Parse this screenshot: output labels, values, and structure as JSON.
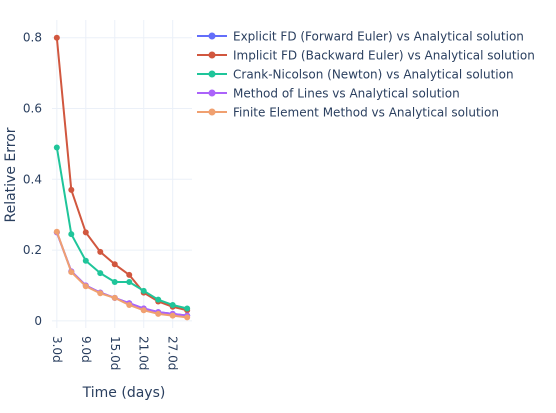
{
  "chart_data": {
    "type": "line",
    "title": "",
    "xlabel": "Time (days)",
    "ylabel": "Relative Error",
    "x": [
      3,
      6,
      9,
      12,
      15,
      18,
      21,
      24,
      27,
      30
    ],
    "xticks": [
      3,
      9,
      15,
      21,
      27
    ],
    "xtick_labels": [
      "3.0d",
      "9.0d",
      "15.0d",
      "21.0d",
      "27.0d"
    ],
    "xlim": [
      2,
      31
    ],
    "yticks": [
      0,
      0.2,
      0.4,
      0.6,
      0.8
    ],
    "ytick_labels": [
      "0",
      "0.2",
      "0.4",
      "0.6",
      "0.8"
    ],
    "ylim": [
      -0.02,
      0.85
    ],
    "grid": true,
    "legend_position": "top-right",
    "series": [
      {
        "name": "Explicit FD (Forward Euler) vs Analytical solution",
        "color": "#636EFA",
        "values": [
          0.25,
          0.14,
          0.1,
          0.08,
          0.065,
          0.05,
          0.035,
          0.025,
          0.02,
          0.015
        ]
      },
      {
        "name": "Implicit FD (Backward Euler) vs Analytical solution",
        "color": "#D1573F",
        "values": [
          0.8,
          0.37,
          0.25,
          0.195,
          0.16,
          0.13,
          0.08,
          0.055,
          0.04,
          0.03
        ]
      },
      {
        "name": "Crank-Nicolson (Newton) vs Analytical solution",
        "color": "#1FC59A",
        "values": [
          0.49,
          0.245,
          0.17,
          0.135,
          0.11,
          0.11,
          0.085,
          0.06,
          0.045,
          0.035
        ]
      },
      {
        "name": "Method of Lines vs Analytical solution",
        "color": "#AB63FA",
        "values": [
          0.25,
          0.14,
          0.1,
          0.08,
          0.065,
          0.05,
          0.035,
          0.025,
          0.02,
          0.015
        ]
      },
      {
        "name": "Finite Element Method vs Analytical solution",
        "color": "#F0A070",
        "values": [
          0.252,
          0.138,
          0.098,
          0.078,
          0.065,
          0.045,
          0.03,
          0.02,
          0.015,
          0.01
        ]
      }
    ]
  }
}
